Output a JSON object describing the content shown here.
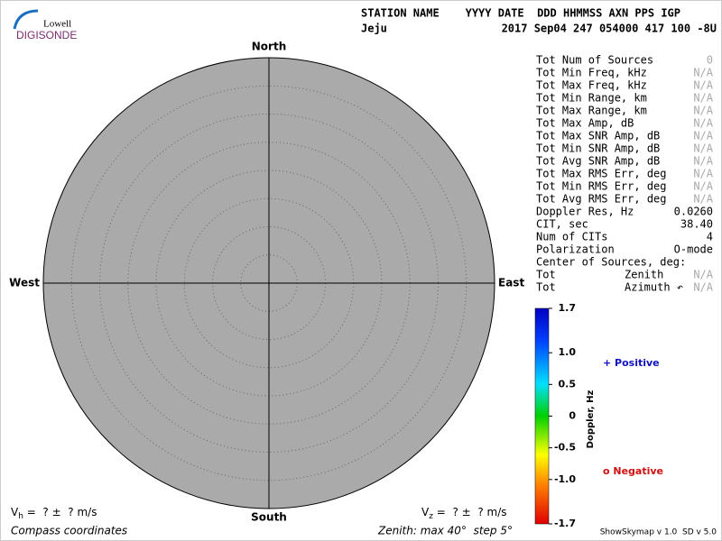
{
  "logo": {
    "top": "Lowell",
    "bottom": "DIGISONDE"
  },
  "header": {
    "line1": "STATION NAME    YYYY DATE  DDD HHMMSS AXN PPS IGP",
    "station": "Jeju",
    "stamp": "2017 Sep04 247 054000 417 100 -8U"
  },
  "compass": {
    "north": "North",
    "south": "South",
    "east": "East",
    "west": "West"
  },
  "stats": [
    {
      "label": "Tot Num of Sources",
      "value": "0"
    },
    {
      "label": "Tot Min Freq, kHz",
      "value": "N/A"
    },
    {
      "label": "Tot Max Freq, kHz",
      "value": "N/A"
    },
    {
      "label": "Tot Min Range, km",
      "value": "N/A"
    },
    {
      "label": "Tot Max Range, km",
      "value": "N/A"
    },
    {
      "label": "Tot Max Amp, dB",
      "value": "N/A"
    },
    {
      "label": "Tot Max SNR Amp, dB",
      "value": "N/A"
    },
    {
      "label": "Tot Min SNR Amp, dB",
      "value": "N/A"
    },
    {
      "label": "Tot Avg SNR Amp, dB",
      "value": "N/A"
    },
    {
      "label": "Tot Max RMS Err, deg",
      "value": "N/A"
    },
    {
      "label": "Tot Min RMS Err, deg",
      "value": "N/A"
    },
    {
      "label": "Tot Avg RMS Err, deg",
      "value": "N/A"
    },
    {
      "label": "Doppler Res, Hz",
      "value": "0.0260"
    },
    {
      "label": "CIT, sec",
      "value": "38.40"
    },
    {
      "label": "Num of CITs",
      "value": "4"
    },
    {
      "label": "Polarization",
      "value": "O-mode"
    },
    {
      "label": "Center of Sources, deg:"
    },
    {
      "label": "Tot",
      "sub": "Zenith",
      "value": "N/A"
    },
    {
      "label": "Tot",
      "sub": "Azimuth ↶",
      "value": "N/A"
    }
  ],
  "colorbar": {
    "title": "Doppler, Hz",
    "clim": [
      -1.7,
      1.7
    ],
    "ticks": [
      1.7,
      {
        "value": 1.0,
        "label": "1.0"
      },
      0.5,
      0,
      -0.5,
      {
        "value": -1.0,
        "label": "-1.0"
      },
      -1.7
    ],
    "positive": "+ Positive",
    "negative": "o Negative"
  },
  "footer": {
    "vh": {
      "v": "V",
      "sub": "h",
      "rest": " =  ? ±  ? m/s"
    },
    "vz": {
      "v": "V",
      "sub": "z",
      "rest": " =  ? ±  ? m/s"
    },
    "coords": "Compass coordinates",
    "zenith": "Zenith: max 40°  step 5°",
    "version": "ShowSkymap v 1.0  SD v 5.0"
  }
}
